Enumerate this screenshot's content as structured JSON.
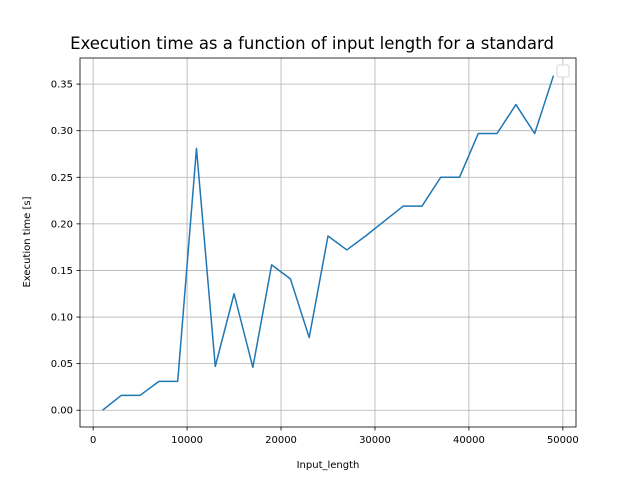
{
  "chart_data": {
    "type": "line",
    "title": "Execution time as a function of input length for a standard",
    "xlabel": "Input_length",
    "ylabel": "Execution time [s]",
    "xlim": [
      -1400,
      51400
    ],
    "ylim": [
      -0.018,
      0.378
    ],
    "xticks": [
      0,
      10000,
      20000,
      30000,
      40000,
      50000
    ],
    "yticks": [
      0.0,
      0.05,
      0.1,
      0.15,
      0.2,
      0.25,
      0.3,
      0.35
    ],
    "grid": true,
    "legend": "top-right",
    "color": "#1f77b4",
    "series": [
      {
        "x": [
          1000,
          3000,
          5000,
          7000,
          9000,
          11000,
          13000,
          15000,
          17000,
          19000,
          21000,
          23000,
          25000,
          27000,
          29000,
          31000,
          33000,
          35000,
          37000,
          39000,
          41000,
          43000,
          45000,
          47000,
          49000
        ],
        "y": [
          0.0,
          0.016,
          0.016,
          0.031,
          0.031,
          0.281,
          0.047,
          0.125,
          0.046,
          0.156,
          0.141,
          0.078,
          0.187,
          0.172,
          0.187,
          0.203,
          0.219,
          0.219,
          0.25,
          0.25,
          0.297,
          0.297,
          0.328,
          0.297,
          0.359
        ]
      }
    ]
  }
}
